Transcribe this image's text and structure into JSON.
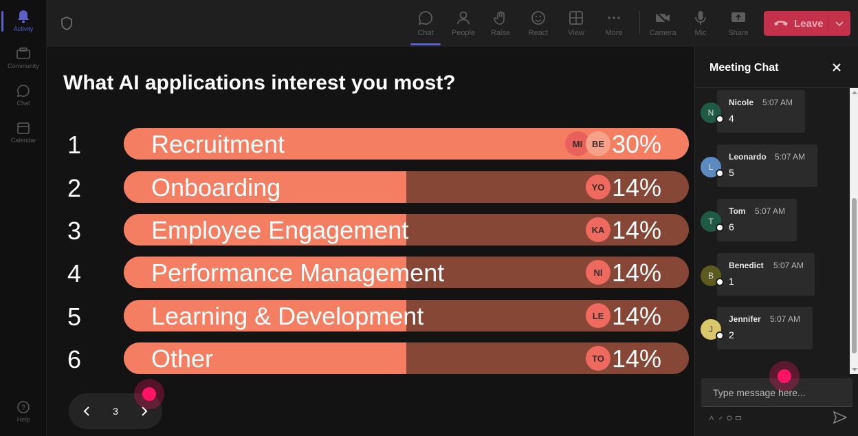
{
  "rail": {
    "items": [
      {
        "label": "Activity",
        "icon": "bell-icon"
      },
      {
        "label": "Community",
        "icon": "community-icon"
      },
      {
        "label": "Chat",
        "icon": "chat-icon"
      },
      {
        "label": "Calendar",
        "icon": "calendar-icon"
      }
    ],
    "help": {
      "label": "Help",
      "icon": "help-icon"
    }
  },
  "toolbar": {
    "chat": "Chat",
    "people": "People",
    "raise": "Raise",
    "react": "React",
    "view": "View",
    "more": "More",
    "camera": "Camera",
    "mic": "Mic",
    "share": "Share",
    "leave": "Leave"
  },
  "poll": {
    "question": "What AI applications interest you most?",
    "options": [
      {
        "rank": "1",
        "label": "Recruitment",
        "percent": "30%",
        "fill": 1.0,
        "avatars": [
          "MI",
          "BE"
        ]
      },
      {
        "rank": "2",
        "label": "Onboarding",
        "percent": "14%",
        "fill": 0.5,
        "avatars": [
          "YO"
        ]
      },
      {
        "rank": "3",
        "label": "Employee Engagement",
        "percent": "14%",
        "fill": 0.5,
        "avatars": [
          "KA"
        ]
      },
      {
        "rank": "4",
        "label": "Performance Management",
        "percent": "14%",
        "fill": 0.5,
        "avatars": [
          "NI"
        ]
      },
      {
        "rank": "5",
        "label": "Learning & Development",
        "percent": "14%",
        "fill": 0.5,
        "avatars": [
          "LE"
        ]
      },
      {
        "rank": "6",
        "label": "Other",
        "percent": "14%",
        "fill": 0.5,
        "avatars": [
          "TO"
        ]
      }
    ],
    "page": "3"
  },
  "chat": {
    "title": "Meeting Chat",
    "messages": [
      {
        "initial": "N",
        "name": "Nicole",
        "time": "5:07 AM",
        "text": "4",
        "color": "#1f5a45"
      },
      {
        "initial": "L",
        "name": "Leonardo",
        "time": "5:07 AM",
        "text": "5",
        "color": "#5b8bbf"
      },
      {
        "initial": "T",
        "name": "Tom",
        "time": "5:07 AM",
        "text": "6",
        "color": "#1f5a45"
      },
      {
        "initial": "B",
        "name": "Benedict",
        "time": "5:07 AM",
        "text": "1",
        "color": "#5c5a1e"
      },
      {
        "initial": "J",
        "name": "Jennifer",
        "time": "5:07 AM",
        "text": "2",
        "color": "#d9c76a"
      }
    ],
    "placeholder": "Type message here..."
  },
  "colors": {
    "bar_fill": "#f47e62",
    "bar_track": "#874737",
    "leave": "#c4314b",
    "accent": "#5b5fc7",
    "cursor": "#ff1465"
  }
}
